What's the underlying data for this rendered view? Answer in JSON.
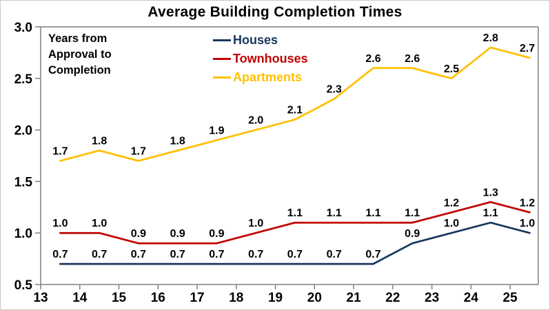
{
  "chart_data": {
    "type": "line",
    "title": "Average Building Completion Times",
    "annotation": "Years from\nApproval to\nCompletion",
    "x": [
      13.5,
      14.5,
      15.5,
      16.5,
      17.5,
      18.5,
      19.5,
      20.5,
      21.5,
      22.5,
      23.5,
      24.5,
      25.5
    ],
    "series": [
      {
        "name": "Houses",
        "color": "#17365D",
        "values": [
          0.7,
          0.7,
          0.7,
          0.7,
          0.7,
          0.7,
          0.7,
          0.7,
          0.7,
          0.9,
          1.0,
          1.1,
          1.0
        ]
      },
      {
        "name": "Townhouses",
        "color": "#C00000",
        "values": [
          1.0,
          1.0,
          0.9,
          0.9,
          0.9,
          1.0,
          1.1,
          1.1,
          1.1,
          1.1,
          1.2,
          1.3,
          1.2
        ]
      },
      {
        "name": "Apartments",
        "color": "#FFC000",
        "values": [
          1.7,
          1.8,
          1.7,
          1.8,
          1.9,
          2.0,
          2.1,
          2.3,
          2.6,
          2.6,
          2.5,
          2.8,
          2.7
        ]
      }
    ],
    "xticks": [
      13,
      14,
      15,
      16,
      17,
      18,
      19,
      20,
      21,
      22,
      23,
      24,
      25
    ],
    "xlim": [
      13,
      25.72
    ],
    "ylim": [
      0.5,
      3.0
    ],
    "yticks": [
      0.5,
      1.0,
      1.5,
      2.0,
      2.5,
      3.0
    ],
    "grid": false,
    "data_labels": true,
    "legend_position": "top-center",
    "axis_color": "#7f7f7f",
    "label_color": "#000000"
  }
}
